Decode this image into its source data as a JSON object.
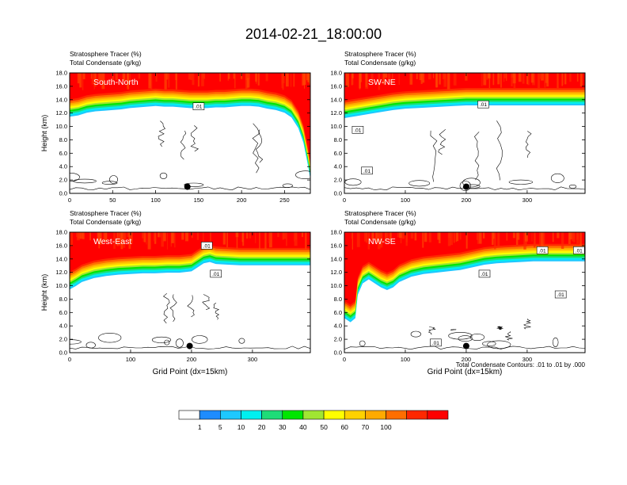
{
  "title": "2014-02-21_18:00:00",
  "colorbar": {
    "colors": [
      "#ffffff",
      "#1e8cff",
      "#1ec8ff",
      "#00f0f0",
      "#1edc78",
      "#00e600",
      "#a0e632",
      "#ffff00",
      "#ffd200",
      "#ffaa00",
      "#ff6e00",
      "#ff2800",
      "#ff0000"
    ],
    "labels": [
      "1",
      "5",
      "10",
      "20",
      "30",
      "40",
      "50",
      "60",
      "70",
      "100"
    ]
  },
  "contour_note": "Total Condensate Contours: .01 to .01 by .000",
  "chart_data": [
    {
      "type": "heatmap",
      "id": "south-north",
      "panel_label": "South-North",
      "title_lines": [
        "Stratosphere Tracer   (%)",
        "Total Condensate   (g/kg)"
      ],
      "ylabel": "Height (km)",
      "xlabel": "",
      "xlim": [
        0,
        280
      ],
      "ylim": [
        0,
        18
      ],
      "xticks": [
        0,
        50,
        100,
        150,
        200,
        250
      ],
      "yticks": [
        "0.0",
        "2.0",
        "4.0",
        "6.0",
        "8.0",
        "10.0",
        "12.0",
        "14.0",
        "16.0",
        "18.0"
      ],
      "tropopause": [
        [
          0,
          14.3
        ],
        [
          10,
          14.5
        ],
        [
          20,
          14.9
        ],
        [
          30,
          15.1
        ],
        [
          40,
          15.2
        ],
        [
          50,
          15.3
        ],
        [
          60,
          15.4
        ],
        [
          70,
          15.6
        ],
        [
          80,
          15.7
        ],
        [
          90,
          15.8
        ],
        [
          100,
          15.9
        ],
        [
          110,
          15.8
        ],
        [
          120,
          15.8
        ],
        [
          130,
          15.7
        ],
        [
          140,
          15.6
        ],
        [
          150,
          15.6
        ],
        [
          160,
          15.6
        ],
        [
          170,
          15.7
        ],
        [
          180,
          15.7
        ],
        [
          190,
          15.8
        ],
        [
          200,
          15.9
        ],
        [
          210,
          15.9
        ],
        [
          220,
          15.8
        ],
        [
          230,
          15.5
        ],
        [
          240,
          15.3
        ],
        [
          250,
          14.9
        ],
        [
          258,
          14.2
        ],
        [
          266,
          12.6
        ],
        [
          272,
          10.4
        ],
        [
          277,
          7.2
        ],
        [
          280,
          5.0
        ]
      ],
      "contour_labels": [
        {
          "x": 150,
          "y": 13.0,
          "text": ".01"
        }
      ],
      "marker": {
        "x": 137,
        "y": 1.0
      }
    },
    {
      "type": "heatmap",
      "id": "sw-ne",
      "panel_label": "SW-NE",
      "title_lines": [
        "Stratosphere Tracer   (%)",
        "Total Condensate   (g/kg)"
      ],
      "ylabel": "",
      "xlabel": "",
      "xlim": [
        0,
        395
      ],
      "ylim": [
        0,
        18
      ],
      "xticks": [
        0,
        100,
        200,
        300
      ],
      "yticks": [
        "0.0",
        "2.0",
        "4.0",
        "6.0",
        "8.0",
        "10.0",
        "12.0",
        "14.0",
        "16.0",
        "18.0"
      ],
      "tropopause": [
        [
          0,
          14.1
        ],
        [
          20,
          14.4
        ],
        [
          40,
          14.7
        ],
        [
          60,
          15.0
        ],
        [
          80,
          15.3
        ],
        [
          100,
          15.5
        ],
        [
          120,
          15.6
        ],
        [
          140,
          15.7
        ],
        [
          160,
          15.8
        ],
        [
          180,
          15.9
        ],
        [
          200,
          16.0
        ],
        [
          220,
          16.0
        ],
        [
          240,
          16.0
        ],
        [
          260,
          16.0
        ],
        [
          280,
          16.0
        ],
        [
          300,
          16.0
        ],
        [
          320,
          16.0
        ],
        [
          340,
          16.0
        ],
        [
          360,
          16.0
        ],
        [
          380,
          16.0
        ],
        [
          395,
          16.0
        ]
      ],
      "contour_labels": [
        {
          "x": 228,
          "y": 13.3,
          "text": ".01"
        },
        {
          "x": 22,
          "y": 9.5,
          "text": ".01"
        },
        {
          "x": 37,
          "y": 3.4,
          "text": ".01"
        }
      ],
      "marker": {
        "x": 200,
        "y": 1.0
      }
    },
    {
      "type": "heatmap",
      "id": "west-east",
      "panel_label": "West-East",
      "title_lines": [
        "Stratosphere Tracer   (%)",
        "Total Condensate   (g/kg)"
      ],
      "ylabel": "Height (km)",
      "xlabel": "Grid Point (dx=15km)",
      "xlim": [
        0,
        395
      ],
      "ylim": [
        0,
        18
      ],
      "xticks": [
        0,
        100,
        200,
        300
      ],
      "yticks": [
        "0.0",
        "2.0",
        "4.0",
        "6.0",
        "8.0",
        "10.0",
        "12.0",
        "14.0",
        "16.0",
        "18.0"
      ],
      "tropopause": [
        [
          0,
          12.3
        ],
        [
          10,
          12.8
        ],
        [
          20,
          13.4
        ],
        [
          40,
          14.0
        ],
        [
          60,
          14.3
        ],
        [
          80,
          14.5
        ],
        [
          100,
          14.6
        ],
        [
          120,
          14.7
        ],
        [
          140,
          14.7
        ],
        [
          160,
          14.8
        ],
        [
          180,
          14.8
        ],
        [
          200,
          15.0
        ],
        [
          210,
          15.6
        ],
        [
          220,
          16.2
        ],
        [
          230,
          16.4
        ],
        [
          240,
          16.1
        ],
        [
          260,
          16.0
        ],
        [
          280,
          15.9
        ],
        [
          300,
          15.9
        ],
        [
          320,
          15.9
        ],
        [
          340,
          15.9
        ],
        [
          360,
          15.9
        ],
        [
          380,
          15.9
        ],
        [
          395,
          15.9
        ]
      ],
      "contour_labels": [
        {
          "x": 225,
          "y": 16.0,
          "text": ".01"
        },
        {
          "x": 240,
          "y": 11.8,
          "text": ".01"
        }
      ],
      "marker": {
        "x": 197,
        "y": 1.0
      }
    },
    {
      "type": "heatmap",
      "id": "nw-se",
      "panel_label": "NW-SE",
      "title_lines": [
        "Stratosphere Tracer   (%)",
        "Total Condensate   (g/kg)"
      ],
      "ylabel": "",
      "xlabel": "Grid Point (dx=15km)",
      "xlim": [
        0,
        395
      ],
      "ylim": [
        0,
        18
      ],
      "xticks": [
        0,
        100,
        200,
        300
      ],
      "yticks": [
        "0.0",
        "2.0",
        "4.0",
        "6.0",
        "8.0",
        "10.0",
        "12.0",
        "14.0",
        "16.0",
        "18.0"
      ],
      "tropopause": [
        [
          0,
          8.0
        ],
        [
          10,
          7.4
        ],
        [
          18,
          8.0
        ],
        [
          22,
          11.5
        ],
        [
          30,
          13.2
        ],
        [
          40,
          13.8
        ],
        [
          50,
          13.2
        ],
        [
          60,
          12.6
        ],
        [
          70,
          12.2
        ],
        [
          80,
          12.6
        ],
        [
          90,
          13.4
        ],
        [
          110,
          14.2
        ],
        [
          130,
          14.6
        ],
        [
          150,
          14.8
        ],
        [
          170,
          15.0
        ],
        [
          190,
          15.2
        ],
        [
          210,
          15.6
        ],
        [
          230,
          16.0
        ],
        [
          250,
          16.2
        ],
        [
          270,
          16.3
        ],
        [
          290,
          16.4
        ],
        [
          310,
          16.5
        ],
        [
          330,
          16.5
        ],
        [
          350,
          16.5
        ],
        [
          370,
          16.5
        ],
        [
          395,
          16.5
        ]
      ],
      "contour_labels": [
        {
          "x": 325,
          "y": 15.3,
          "text": ".01"
        },
        {
          "x": 385,
          "y": 15.3,
          "text": ".01"
        },
        {
          "x": 230,
          "y": 11.8,
          "text": ".01"
        },
        {
          "x": 355,
          "y": 8.7,
          "text": ".01"
        },
        {
          "x": 150,
          "y": 1.5,
          "text": ".01"
        }
      ],
      "marker": {
        "x": 200,
        "y": 1.0
      }
    }
  ]
}
